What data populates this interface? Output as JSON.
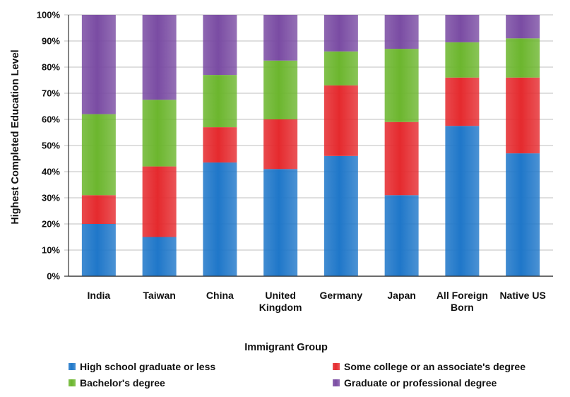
{
  "chart_data": {
    "type": "bar",
    "stacked": true,
    "title": "",
    "xlabel": "Immigrant Group",
    "ylabel": "Highest Completed Education Level",
    "ylim": [
      0,
      100
    ],
    "y_ticks": [
      "0%",
      "10%",
      "20%",
      "30%",
      "40%",
      "50%",
      "60%",
      "70%",
      "80%",
      "90%",
      "100%"
    ],
    "categories": [
      [
        "India"
      ],
      [
        "Taiwan"
      ],
      [
        "China"
      ],
      [
        "United",
        "Kingdom"
      ],
      [
        "Germany"
      ],
      [
        "Japan"
      ],
      [
        "All Foreign",
        "Born"
      ],
      [
        "Native US"
      ]
    ],
    "series": [
      {
        "name": "High school graduate or less",
        "color": "#1f77c9",
        "values": [
          20,
          15,
          43.5,
          41,
          46,
          31,
          57.5,
          47
        ]
      },
      {
        "name": "Some college or an associate's degree",
        "color": "#e52a2e",
        "values": [
          11,
          27,
          13.5,
          19,
          27,
          28,
          18.5,
          29
        ]
      },
      {
        "name": "Bachelor's degree",
        "color": "#6cb62e",
        "values": [
          31,
          25.5,
          20,
          22.5,
          13,
          28,
          13.5,
          15
        ]
      },
      {
        "name": "Graduate or professional degree",
        "color": "#7a4ca3",
        "values": [
          38,
          32.5,
          23,
          17.5,
          14,
          13,
          10.5,
          9
        ]
      }
    ],
    "grid": true,
    "legend_position": "bottom"
  }
}
